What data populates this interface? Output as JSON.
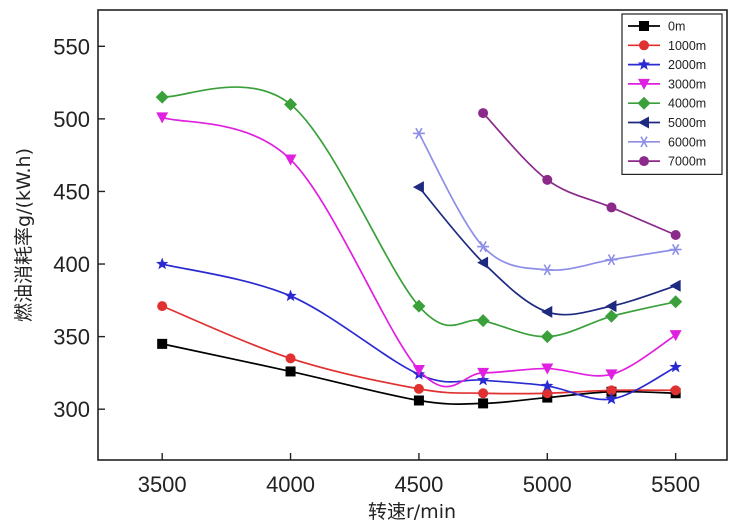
{
  "chart_data": {
    "type": "line",
    "title": "",
    "xlabel": "转速r/min",
    "ylabel": "燃油消耗率g/(kW.h)",
    "xlim": [
      3250,
      5700
    ],
    "ylim": [
      265,
      575
    ],
    "xticks": [
      3500,
      4000,
      4500,
      5000,
      5500
    ],
    "yticks": [
      300,
      350,
      400,
      450,
      500,
      550
    ],
    "legend_position": "top-right",
    "grid": false,
    "series": [
      {
        "name": "0m",
        "color": "#000000",
        "marker": "square",
        "points": [
          [
            3500,
            345
          ],
          [
            4000,
            326
          ],
          [
            4500,
            306
          ],
          [
            4750,
            304
          ],
          [
            5000,
            308
          ],
          [
            5250,
            312
          ],
          [
            5500,
            311
          ]
        ]
      },
      {
        "name": "1000m",
        "color": "#e0302f",
        "marker": "circle",
        "points": [
          [
            3500,
            371
          ],
          [
            4000,
            335
          ],
          [
            4500,
            314
          ],
          [
            4750,
            311
          ],
          [
            5000,
            311
          ],
          [
            5250,
            313
          ],
          [
            5500,
            313
          ]
        ]
      },
      {
        "name": "2000m",
        "color": "#2a2ad0",
        "marker": "star",
        "points": [
          [
            3500,
            400
          ],
          [
            4000,
            378
          ],
          [
            4500,
            324
          ],
          [
            4750,
            320
          ],
          [
            5000,
            316
          ],
          [
            5250,
            307
          ],
          [
            5500,
            329
          ]
        ]
      },
      {
        "name": "3000m",
        "color": "#e020e0",
        "marker": "triangle-down",
        "points": [
          [
            3500,
            501
          ],
          [
            4000,
            472
          ],
          [
            4500,
            327
          ],
          [
            4750,
            325
          ],
          [
            5000,
            328
          ],
          [
            5250,
            324
          ],
          [
            5500,
            351
          ]
        ]
      },
      {
        "name": "4000m",
        "color": "#3aa03a",
        "marker": "diamond",
        "points": [
          [
            3500,
            515
          ],
          [
            4000,
            510
          ],
          [
            4500,
            371
          ],
          [
            4750,
            361
          ],
          [
            5000,
            350
          ],
          [
            5250,
            364
          ],
          [
            5500,
            374
          ]
        ]
      },
      {
        "name": "5000m",
        "color": "#1e2a80",
        "marker": "triangle-left",
        "points": [
          [
            4500,
            453
          ],
          [
            4750,
            401
          ],
          [
            5000,
            367
          ],
          [
            5250,
            371
          ],
          [
            5500,
            385
          ]
        ]
      },
      {
        "name": "6000m",
        "color": "#8e8ee8",
        "marker": "asterisk",
        "points": [
          [
            4500,
            490
          ],
          [
            4750,
            412
          ],
          [
            5000,
            396
          ],
          [
            5250,
            403
          ],
          [
            5500,
            410
          ]
        ]
      },
      {
        "name": "7000m",
        "color": "#8b2a8b",
        "marker": "circle",
        "points": [
          [
            4750,
            504
          ],
          [
            5000,
            458
          ],
          [
            5250,
            439
          ],
          [
            5500,
            420
          ]
        ]
      }
    ]
  }
}
